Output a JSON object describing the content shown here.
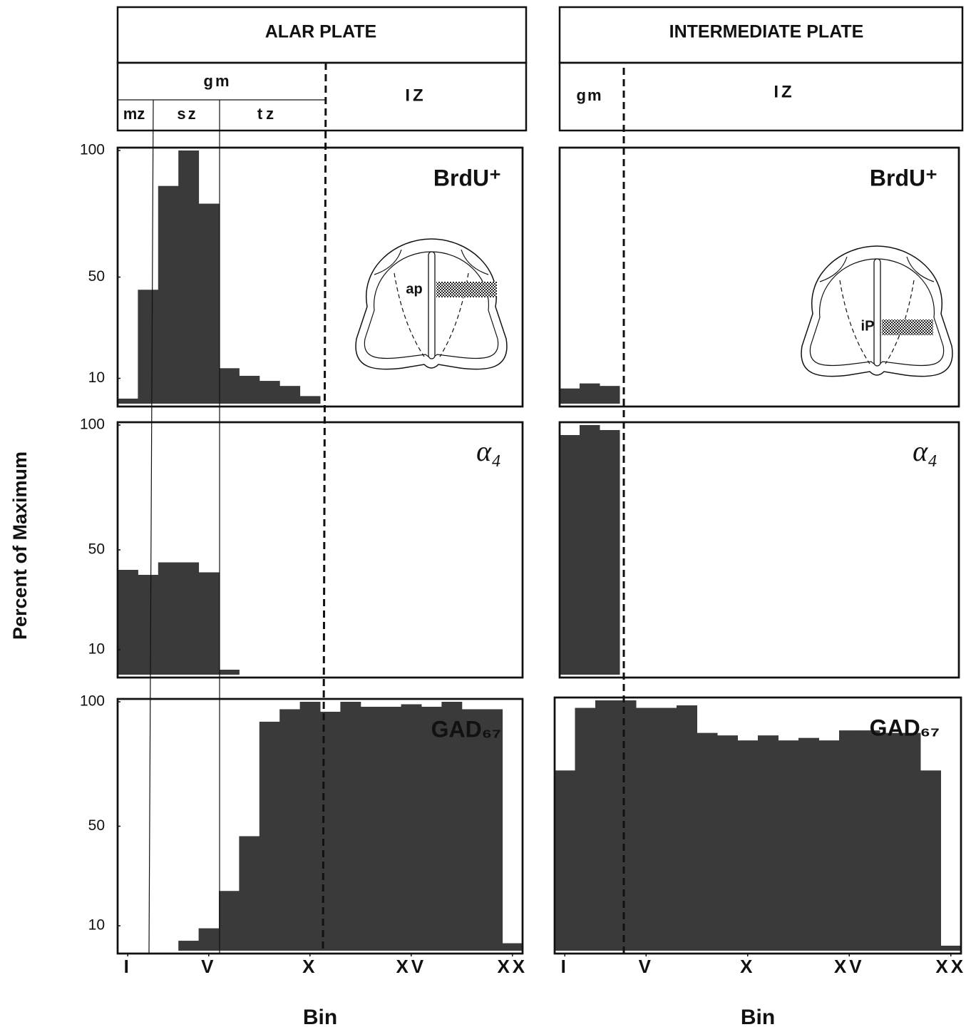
{
  "ylabel": "Percent of Maximum",
  "columns": [
    {
      "header": "ALAR PLATE",
      "gm": "gm",
      "zones": [
        "mz",
        "sz",
        "tz"
      ],
      "iz": "IZ",
      "inset_label": "ap"
    },
    {
      "header": "INTERMEDIATE PLATE",
      "gm": "gm",
      "iz": "IZ",
      "inset_label": "iP"
    }
  ],
  "chart_data": [
    {
      "type": "bar",
      "title": "BrdU⁺",
      "color": "#3a3a3a",
      "x": [
        1,
        2,
        3,
        4,
        5,
        6,
        7,
        8,
        9,
        10,
        11,
        12,
        13,
        14,
        15,
        16,
        17,
        18,
        19,
        20
      ],
      "values": [
        2,
        45,
        86,
        100,
        79,
        14,
        11,
        9,
        7,
        3,
        null,
        null,
        null,
        null,
        null,
        null,
        null,
        null,
        null,
        null
      ],
      "xlim": [
        0.5,
        20.5
      ],
      "ylim": [
        0,
        100
      ],
      "yticks": [
        10,
        50,
        100
      ]
    },
    {
      "type": "bar",
      "title": "α₄",
      "color": "#3a3a3a",
      "x": [
        1,
        2,
        3,
        4,
        5,
        6,
        7,
        8,
        9,
        10,
        11,
        12,
        13,
        14,
        15,
        16,
        17,
        18,
        19,
        20
      ],
      "values": [
        42,
        40,
        45,
        45,
        41,
        2,
        null,
        null,
        null,
        null,
        null,
        null,
        null,
        null,
        null,
        null,
        null,
        null,
        null,
        null
      ],
      "xlim": [
        0.5,
        20.5
      ],
      "ylim": [
        0,
        100
      ],
      "yticks": [
        10,
        50,
        100
      ]
    },
    {
      "type": "bar",
      "title": "GAD₆₇",
      "color": "#3a3a3a",
      "x": [
        1,
        2,
        3,
        4,
        5,
        6,
        7,
        8,
        9,
        10,
        11,
        12,
        13,
        14,
        15,
        16,
        17,
        18,
        19,
        20
      ],
      "values": [
        0,
        0,
        0,
        4,
        9,
        24,
        46,
        92,
        97,
        100,
        96,
        100,
        98,
        98,
        99,
        98,
        100,
        97,
        97,
        3
      ],
      "xlim": [
        0.5,
        20.5
      ],
      "ylim": [
        0,
        100
      ],
      "yticks": [
        10,
        50,
        100
      ],
      "xticks": [
        {
          "value": 1,
          "label": "I"
        },
        {
          "value": 5,
          "label": "V"
        },
        {
          "value": 10,
          "label": "X"
        },
        {
          "value": 15,
          "label": "XV"
        },
        {
          "value": 20,
          "label": "XX"
        }
      ],
      "xlabel": "Bin"
    },
    {
      "type": "bar",
      "title": "BrdU⁺",
      "color": "#3a3a3a",
      "x": [
        1,
        2,
        3,
        4,
        5,
        6,
        7,
        8,
        9,
        10,
        11,
        12,
        13,
        14,
        15,
        16,
        17,
        18,
        19,
        20
      ],
      "values": [
        6,
        8,
        7,
        null,
        null,
        null,
        null,
        null,
        null,
        null,
        null,
        null,
        null,
        null,
        null,
        null,
        null,
        null,
        null,
        null
      ],
      "xlim": [
        0.5,
        20.5
      ],
      "ylim": [
        0,
        100
      ]
    },
    {
      "type": "bar",
      "title": "α₄",
      "color": "#3a3a3a",
      "x": [
        1,
        2,
        3,
        4,
        5,
        6,
        7,
        8,
        9,
        10,
        11,
        12,
        13,
        14,
        15,
        16,
        17,
        18,
        19,
        20
      ],
      "values": [
        96,
        100,
        98,
        null,
        null,
        null,
        null,
        null,
        null,
        null,
        null,
        null,
        null,
        null,
        null,
        null,
        null,
        null,
        null,
        null
      ],
      "xlim": [
        0.5,
        20.5
      ],
      "ylim": [
        0,
        100
      ]
    },
    {
      "type": "bar",
      "title": "GAD₆₇",
      "color": "#3a3a3a",
      "x": [
        1,
        2,
        3,
        4,
        5,
        6,
        7,
        8,
        9,
        10,
        11,
        12,
        13,
        14,
        15,
        16,
        17,
        18,
        19,
        20
      ],
      "values": [
        72,
        97,
        100,
        100,
        97,
        97,
        98,
        87,
        86,
        84,
        86,
        84,
        85,
        84,
        88,
        88,
        87,
        87,
        72,
        2
      ],
      "xlim": [
        0.5,
        20.5
      ],
      "ylim": [
        0,
        100
      ],
      "xticks": [
        {
          "value": 1,
          "label": "I"
        },
        {
          "value": 5,
          "label": "V"
        },
        {
          "value": 10,
          "label": "X"
        },
        {
          "value": 15,
          "label": "XV"
        },
        {
          "value": 20,
          "label": "XX"
        }
      ],
      "xlabel": "Bin"
    }
  ]
}
